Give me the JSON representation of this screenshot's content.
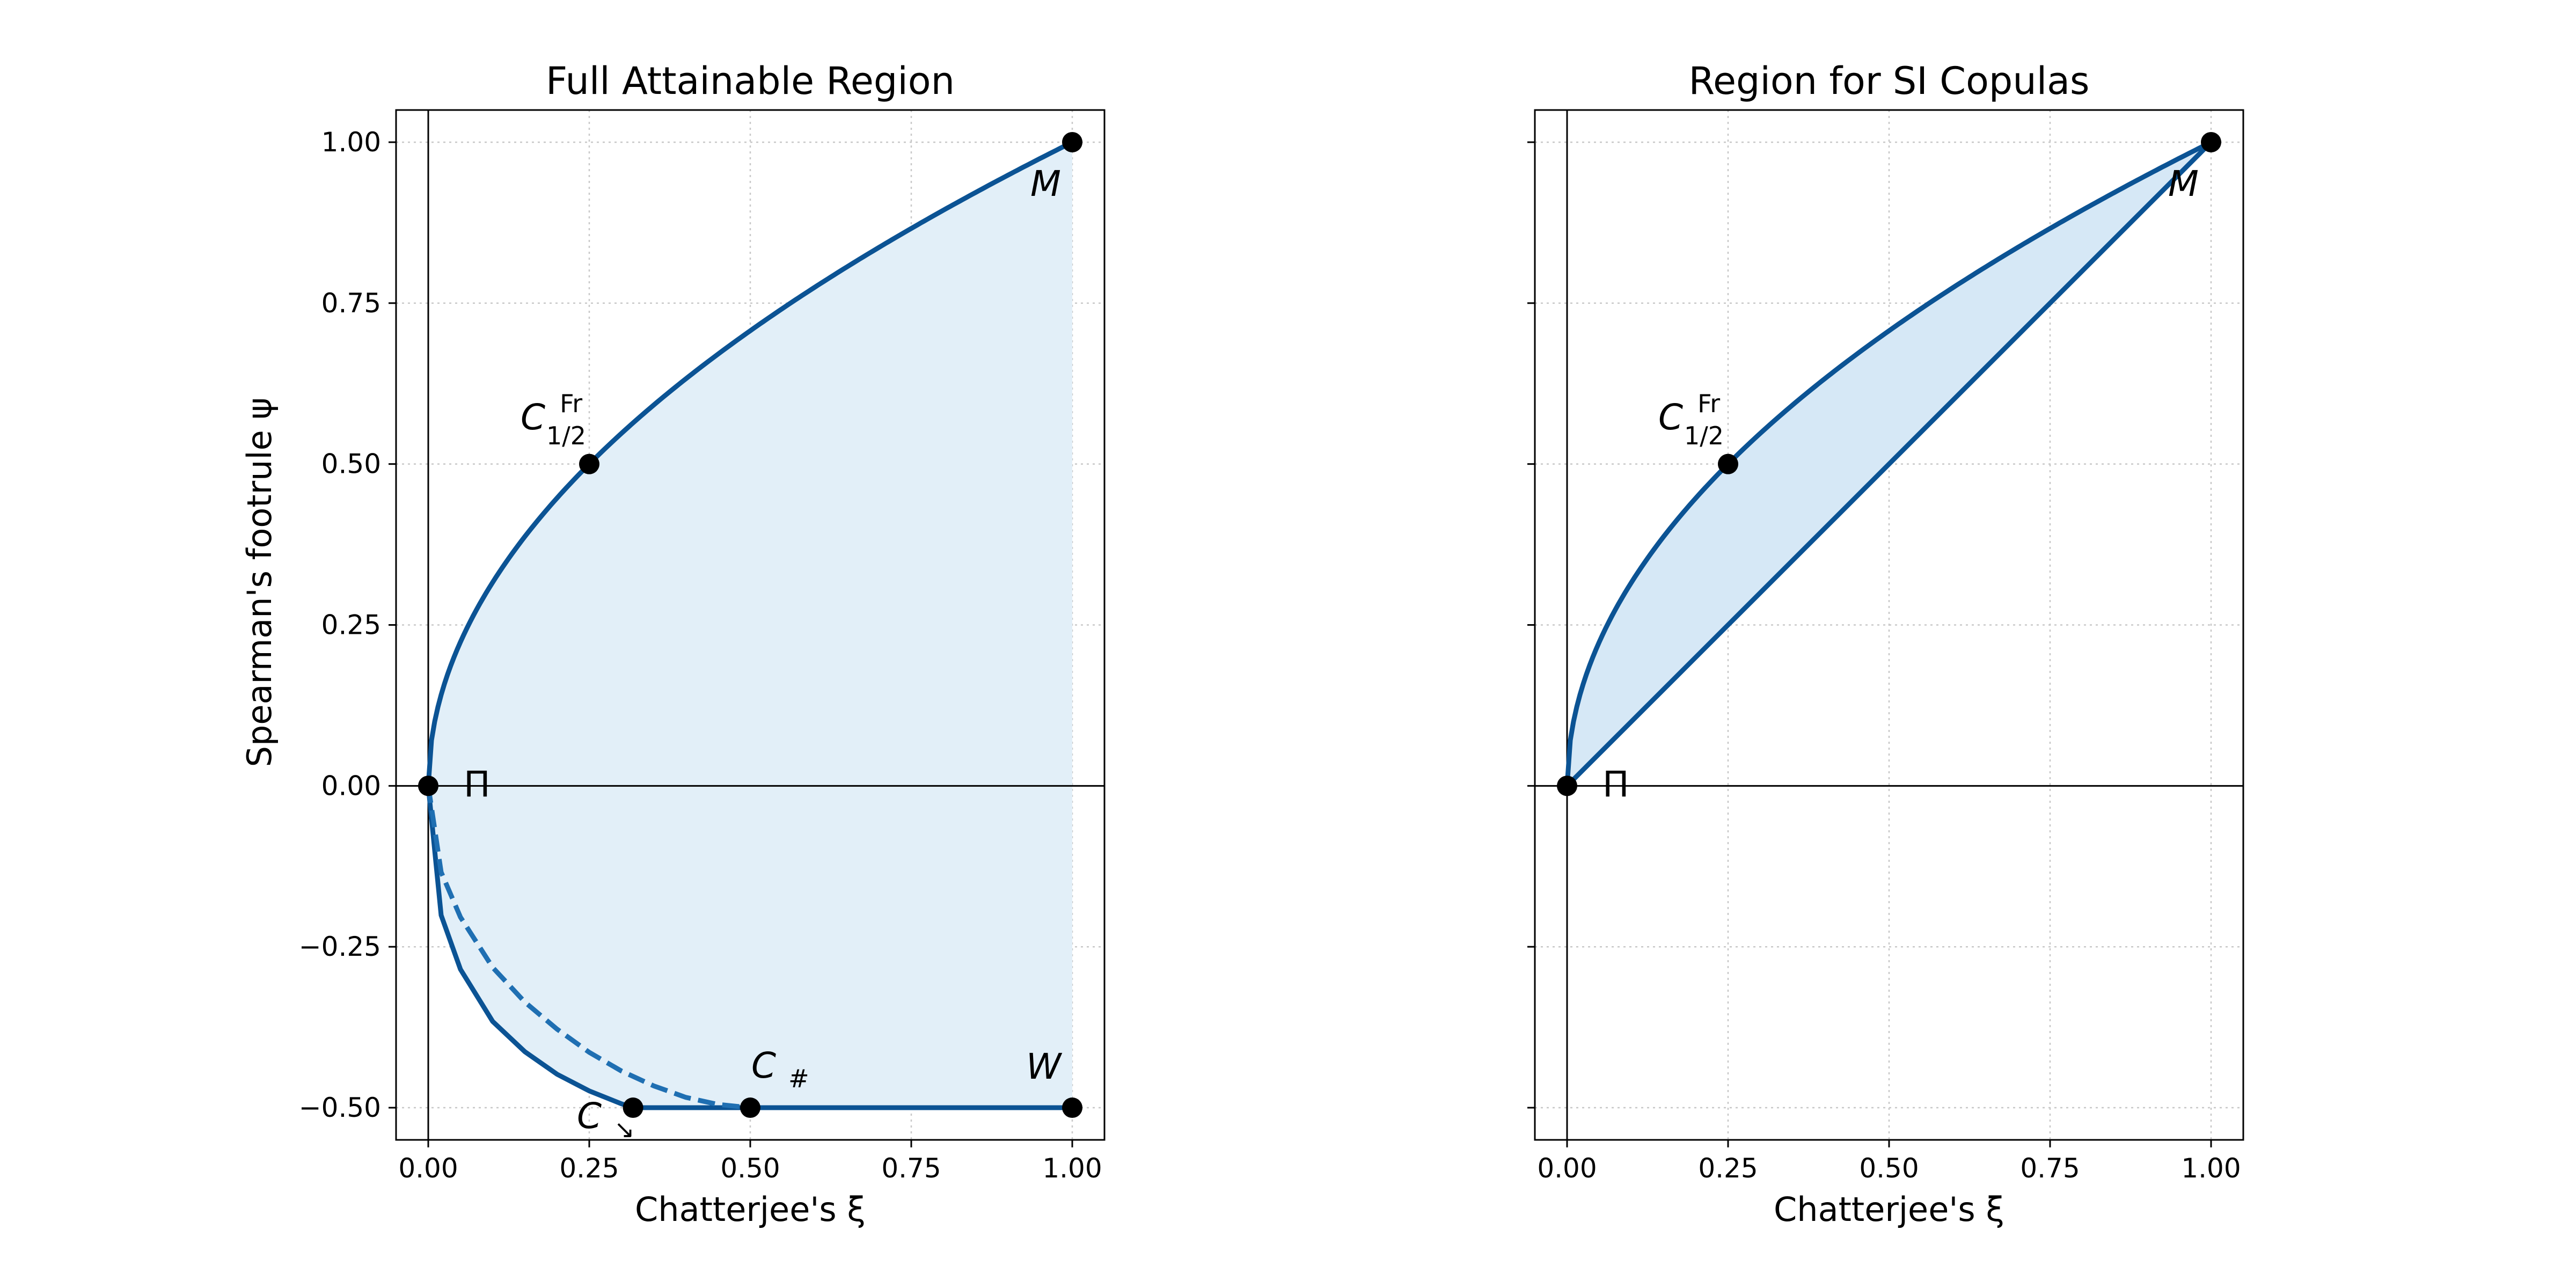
{
  "colors": {
    "curve": "#0b5394",
    "fill_left": "#e2eff8",
    "fill_right": "#d6e8f6",
    "grid": "#c8c8c8",
    "point": "#000000"
  },
  "chart_data": [
    {
      "type": "area",
      "title": "Full Attainable Region",
      "xlabel": "Chatterjee's ξ",
      "ylabel": "Spearman's footrule ψ",
      "xlim": [
        -0.05,
        1.05
      ],
      "ylim": [
        -0.55,
        1.05
      ],
      "xticks": [
        0.0,
        0.25,
        0.5,
        0.75,
        1.0
      ],
      "xtick_labels": [
        "0.00",
        "0.25",
        "0.50",
        "0.75",
        "1.00"
      ],
      "yticks": [
        -0.5,
        -0.25,
        0.0,
        0.25,
        0.5,
        0.75,
        1.0
      ],
      "ytick_labels": [
        "−0.50",
        "−0.25",
        "0.00",
        "0.25",
        "0.50",
        "0.75",
        "1.00"
      ],
      "grid": true,
      "upper_boundary": {
        "function": "psi = sqrt(xi)",
        "x_range": [
          0,
          1
        ]
      },
      "lower_boundary_solid": {
        "x": [
          0,
          0.02,
          0.05,
          0.1,
          0.15,
          0.2,
          0.25,
          0.3,
          0.318,
          1.0
        ],
        "y": [
          0,
          -0.201,
          -0.285,
          -0.366,
          -0.413,
          -0.448,
          -0.474,
          -0.494,
          -0.5,
          -0.5
        ]
      },
      "lower_boundary_dashed": {
        "x": [
          0,
          0.02,
          0.05,
          0.1,
          0.15,
          0.2,
          0.25,
          0.3,
          0.35,
          0.4,
          0.45,
          0.5
        ],
        "y": [
          0,
          -0.134,
          -0.204,
          -0.282,
          -0.336,
          -0.378,
          -0.414,
          -0.443,
          -0.466,
          -0.484,
          -0.495,
          -0.5
        ]
      },
      "points": [
        {
          "name": "M",
          "x": 1.0,
          "y": 1.0,
          "label": "M",
          "style": "italic"
        },
        {
          "name": "Fr",
          "x": 0.25,
          "y": 0.5,
          "label": "C",
          "sup": "Fr",
          "sub": "1/2"
        },
        {
          "name": "Pi",
          "x": 0.0,
          "y": 0.0,
          "label": "Π",
          "style": "upright"
        },
        {
          "name": "Csearrow",
          "x": 0.318,
          "y": -0.5,
          "label": "C",
          "sub": "↘"
        },
        {
          "name": "Csharp",
          "x": 0.5,
          "y": -0.5,
          "label": "C",
          "sub": "#"
        },
        {
          "name": "W",
          "x": 1.0,
          "y": -0.5,
          "label": "W",
          "style": "italic"
        }
      ]
    },
    {
      "type": "area",
      "title": "Region for SI Copulas",
      "xlabel": "Chatterjee's ξ",
      "ylabel": "",
      "xlim": [
        -0.05,
        1.05
      ],
      "ylim": [
        -0.55,
        1.05
      ],
      "xticks": [
        0.0,
        0.25,
        0.5,
        0.75,
        1.0
      ],
      "xtick_labels": [
        "0.00",
        "0.25",
        "0.50",
        "0.75",
        "1.00"
      ],
      "yticks": [
        -0.5,
        -0.25,
        0.0,
        0.25,
        0.5,
        0.75,
        1.0
      ],
      "grid": true,
      "upper_boundary": {
        "function": "psi = sqrt(xi)",
        "x_range": [
          0,
          1
        ]
      },
      "lower_boundary": {
        "function": "psi = xi",
        "x_range": [
          0,
          1
        ]
      },
      "points": [
        {
          "name": "M",
          "x": 1.0,
          "y": 1.0,
          "label": "M",
          "style": "italic"
        },
        {
          "name": "Fr",
          "x": 0.25,
          "y": 0.5,
          "label": "C",
          "sup": "Fr",
          "sub": "1/2"
        },
        {
          "name": "Pi",
          "x": 0.0,
          "y": 0.0,
          "label": "Π",
          "style": "upright"
        }
      ]
    }
  ]
}
